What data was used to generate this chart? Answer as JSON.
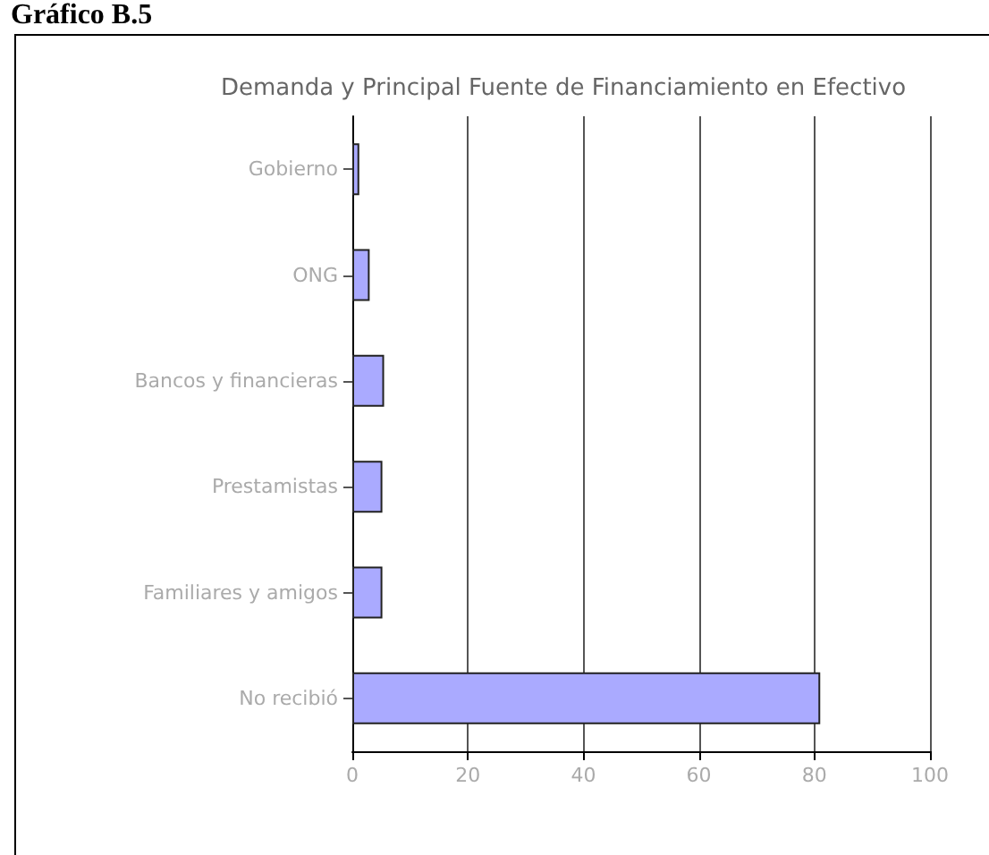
{
  "chart_data": {
    "type": "bar",
    "orientation": "horizontal",
    "title": "Demanda y Principal Fuente de Financiamiento en Efectivo",
    "annotations": [
      "Gráfico B.5"
    ],
    "categories": [
      "Gobierno",
      "ONG",
      "Bancos y financieras",
      "Prestamistas",
      "Familiares y amigos",
      "No recibió"
    ],
    "values": [
      1.2,
      3,
      5.5,
      5.2,
      5.2,
      81
    ],
    "color": "#aaaaff",
    "xlim": [
      0,
      100
    ],
    "xticks": [
      0,
      20,
      40,
      60,
      80,
      100
    ],
    "grid": "x"
  }
}
